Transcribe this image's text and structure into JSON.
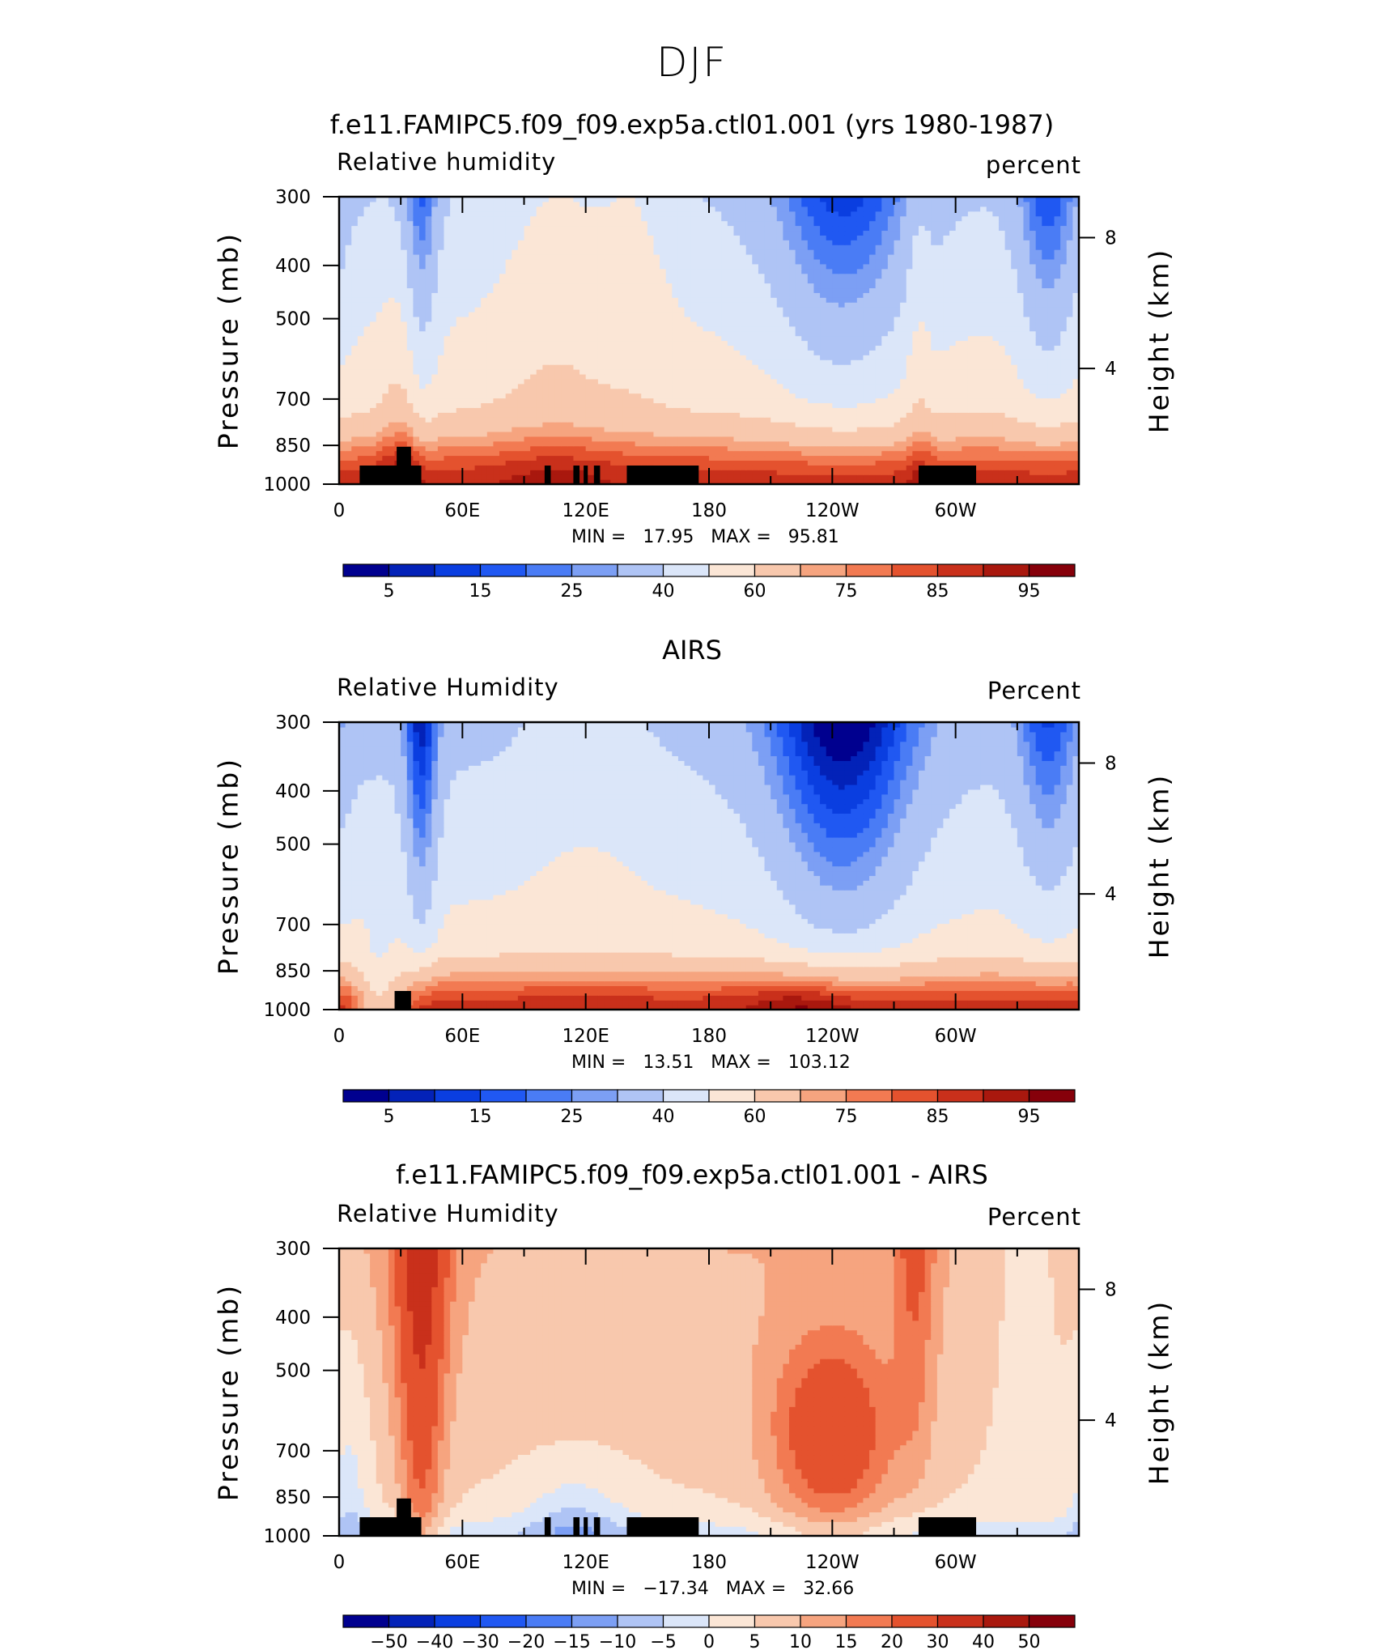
{
  "figure": {
    "main_title": "DJF"
  },
  "chart_data": [
    {
      "type": "heatmap",
      "panel": "model",
      "title": "f.e11.FAMIPC5.f09_f09.exp5a.ctl01.001 (yrs 1980-1987)",
      "left_label": "Relative humidity",
      "right_label": "percent",
      "ylabel": "Pressure (mb)",
      "ylabel_right": "Height (km)",
      "x_ticks": [
        "0",
        "60E",
        "120E",
        "180",
        "120W",
        "60W"
      ],
      "y_ticks": [
        "300",
        "400",
        "500",
        "700",
        "850",
        "1000"
      ],
      "right_ticks": [
        "8",
        "4"
      ],
      "min_label": "MIN =",
      "min_value": "17.95",
      "max_label": "MAX =",
      "max_value": "95.81",
      "colorbar_labels": [
        "5",
        "15",
        "25",
        "40",
        "60",
        "75",
        "85",
        "95"
      ],
      "colormap": "sequential_rh",
      "xlim": [
        0,
        360
      ],
      "ylim": [
        1000,
        300
      ]
    },
    {
      "type": "heatmap",
      "panel": "obs",
      "title": "AIRS",
      "left_label": "Relative Humidity",
      "right_label": "Percent",
      "ylabel": "Pressure (mb)",
      "ylabel_right": "Height (km)",
      "x_ticks": [
        "0",
        "60E",
        "120E",
        "180",
        "120W",
        "60W"
      ],
      "y_ticks": [
        "300",
        "400",
        "500",
        "700",
        "850",
        "1000"
      ],
      "right_ticks": [
        "8",
        "4"
      ],
      "min_label": "MIN =",
      "min_value": "13.51",
      "max_label": "MAX =",
      "max_value": "103.12",
      "colorbar_labels": [
        "5",
        "15",
        "25",
        "40",
        "60",
        "75",
        "85",
        "95"
      ],
      "colormap": "sequential_rh",
      "xlim": [
        0,
        360
      ],
      "ylim": [
        1000,
        300
      ]
    },
    {
      "type": "heatmap",
      "panel": "diff",
      "title": "f.e11.FAMIPC5.f09_f09.exp5a.ctl01.001 - AIRS",
      "left_label": "Relative Humidity",
      "right_label": "Percent",
      "ylabel": "Pressure (mb)",
      "ylabel_right": "Height (km)",
      "x_ticks": [
        "0",
        "60E",
        "120E",
        "180",
        "120W",
        "60W"
      ],
      "y_ticks": [
        "300",
        "400",
        "500",
        "700",
        "850",
        "1000"
      ],
      "right_ticks": [
        "8",
        "4"
      ],
      "min_label": "MIN =",
      "min_value": "−17.34",
      "max_label": "MAX =",
      "max_value": "32.66",
      "colorbar_labels": [
        "−50",
        "−40",
        "−30",
        "−20",
        "−15",
        "−10",
        "−5",
        "0",
        "5",
        "10",
        "15",
        "20",
        "30",
        "40",
        "50"
      ],
      "colormap": "diverging_diff",
      "xlim": [
        0,
        360
      ],
      "ylim": [
        1000,
        300
      ]
    }
  ],
  "colors": {
    "palette16": [
      "#00008f",
      "#0322b8",
      "#0a3ee0",
      "#2058f2",
      "#4a7cf5",
      "#7c9ff4",
      "#afc4f5",
      "#dbe6f9",
      "#fbe6d6",
      "#f8c8ad",
      "#f6a47f",
      "#f27a52",
      "#e4522e",
      "#c9301b",
      "#a9180e",
      "#86000a"
    ],
    "terrain": "#000000"
  }
}
